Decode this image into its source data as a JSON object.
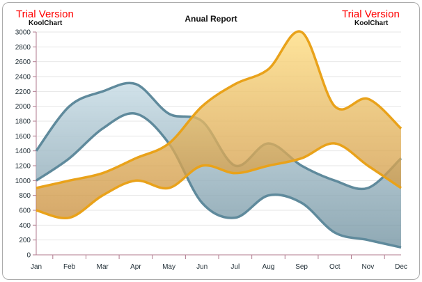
{
  "watermark": {
    "trial": "Trial Version",
    "brand": "KoolChart"
  },
  "chart_data": {
    "type": "area",
    "subtype": "range-area",
    "title": "Anual Report",
    "xlabel": "",
    "ylabel": "",
    "categories": [
      "Jan",
      "Feb",
      "Mar",
      "Apr",
      "May",
      "Jun",
      "Jul",
      "Aug",
      "Sep",
      "Oct",
      "Nov",
      "Dec"
    ],
    "ylim": [
      0,
      3000
    ],
    "yticks": [
      0,
      200,
      400,
      600,
      800,
      1000,
      1200,
      1400,
      1600,
      1800,
      2000,
      2200,
      2400,
      2600,
      2800,
      3000
    ],
    "grid": true,
    "series": [
      {
        "color": "#5f8a9c",
        "high": [
          1400,
          2000,
          2200,
          2300,
          1900,
          1800,
          1200,
          1500,
          1200,
          1000,
          900,
          1300
        ],
        "low": [
          1000,
          1300,
          1700,
          1900,
          1500,
          700,
          500,
          800,
          700,
          300,
          200,
          100
        ]
      },
      {
        "color": "#e9a21a",
        "high": [
          900,
          1000,
          1100,
          1300,
          1500,
          2000,
          2300,
          2500,
          3000,
          2000,
          2100,
          1700
        ],
        "low": [
          600,
          500,
          800,
          1000,
          900,
          1200,
          1100,
          1200,
          1300,
          1500,
          1200,
          900
        ]
      }
    ]
  }
}
